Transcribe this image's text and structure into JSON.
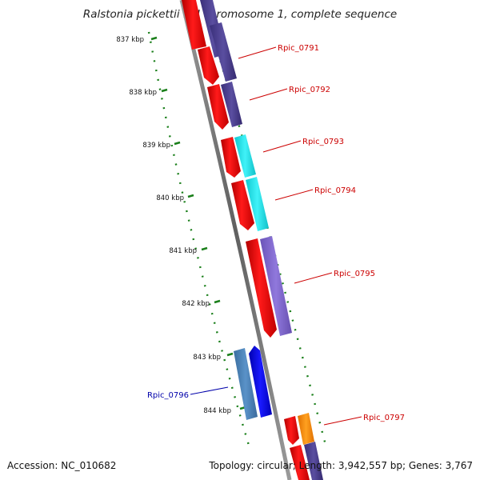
{
  "title": "Ralstonia pickettii 12J chromosome 1, complete sequence",
  "accession_label": "Accession: NC_010682",
  "topology_label": "Topology: circular; Length: 3,942,557 bp; Genes: 3,767",
  "ruler_ticks": [
    "837 kbp",
    "838 kbp",
    "839 kbp",
    "840 kbp",
    "841 kbp",
    "842 kbp",
    "843 kbp",
    "844 kbp"
  ],
  "gene_labels": [
    {
      "name": "Rpic_0791",
      "color": "#cc0000"
    },
    {
      "name": "Rpic_0792",
      "color": "#cc0000"
    },
    {
      "name": "Rpic_0793",
      "color": "#cc0000"
    },
    {
      "name": "Rpic_0794",
      "color": "#cc0000"
    },
    {
      "name": "Rpic_0795",
      "color": "#cc0000"
    },
    {
      "name": "Rpic_0796",
      "color": "#0000aa"
    },
    {
      "name": "Rpic_0797",
      "color": "#cc0000"
    }
  ],
  "colors": {
    "gene_red": "#ff0000",
    "protein_indigo": "#4a3f8c",
    "protein_cyan": "#22e6ee",
    "protein_lavender": "#8068cc",
    "protein_steelblue": "#4a7fb5",
    "gene_blue": "#0000ee",
    "protein_orange": "#ff8a00",
    "ruler_green": "#1a7f1a",
    "backbone_gray": "#7a7a7a"
  }
}
